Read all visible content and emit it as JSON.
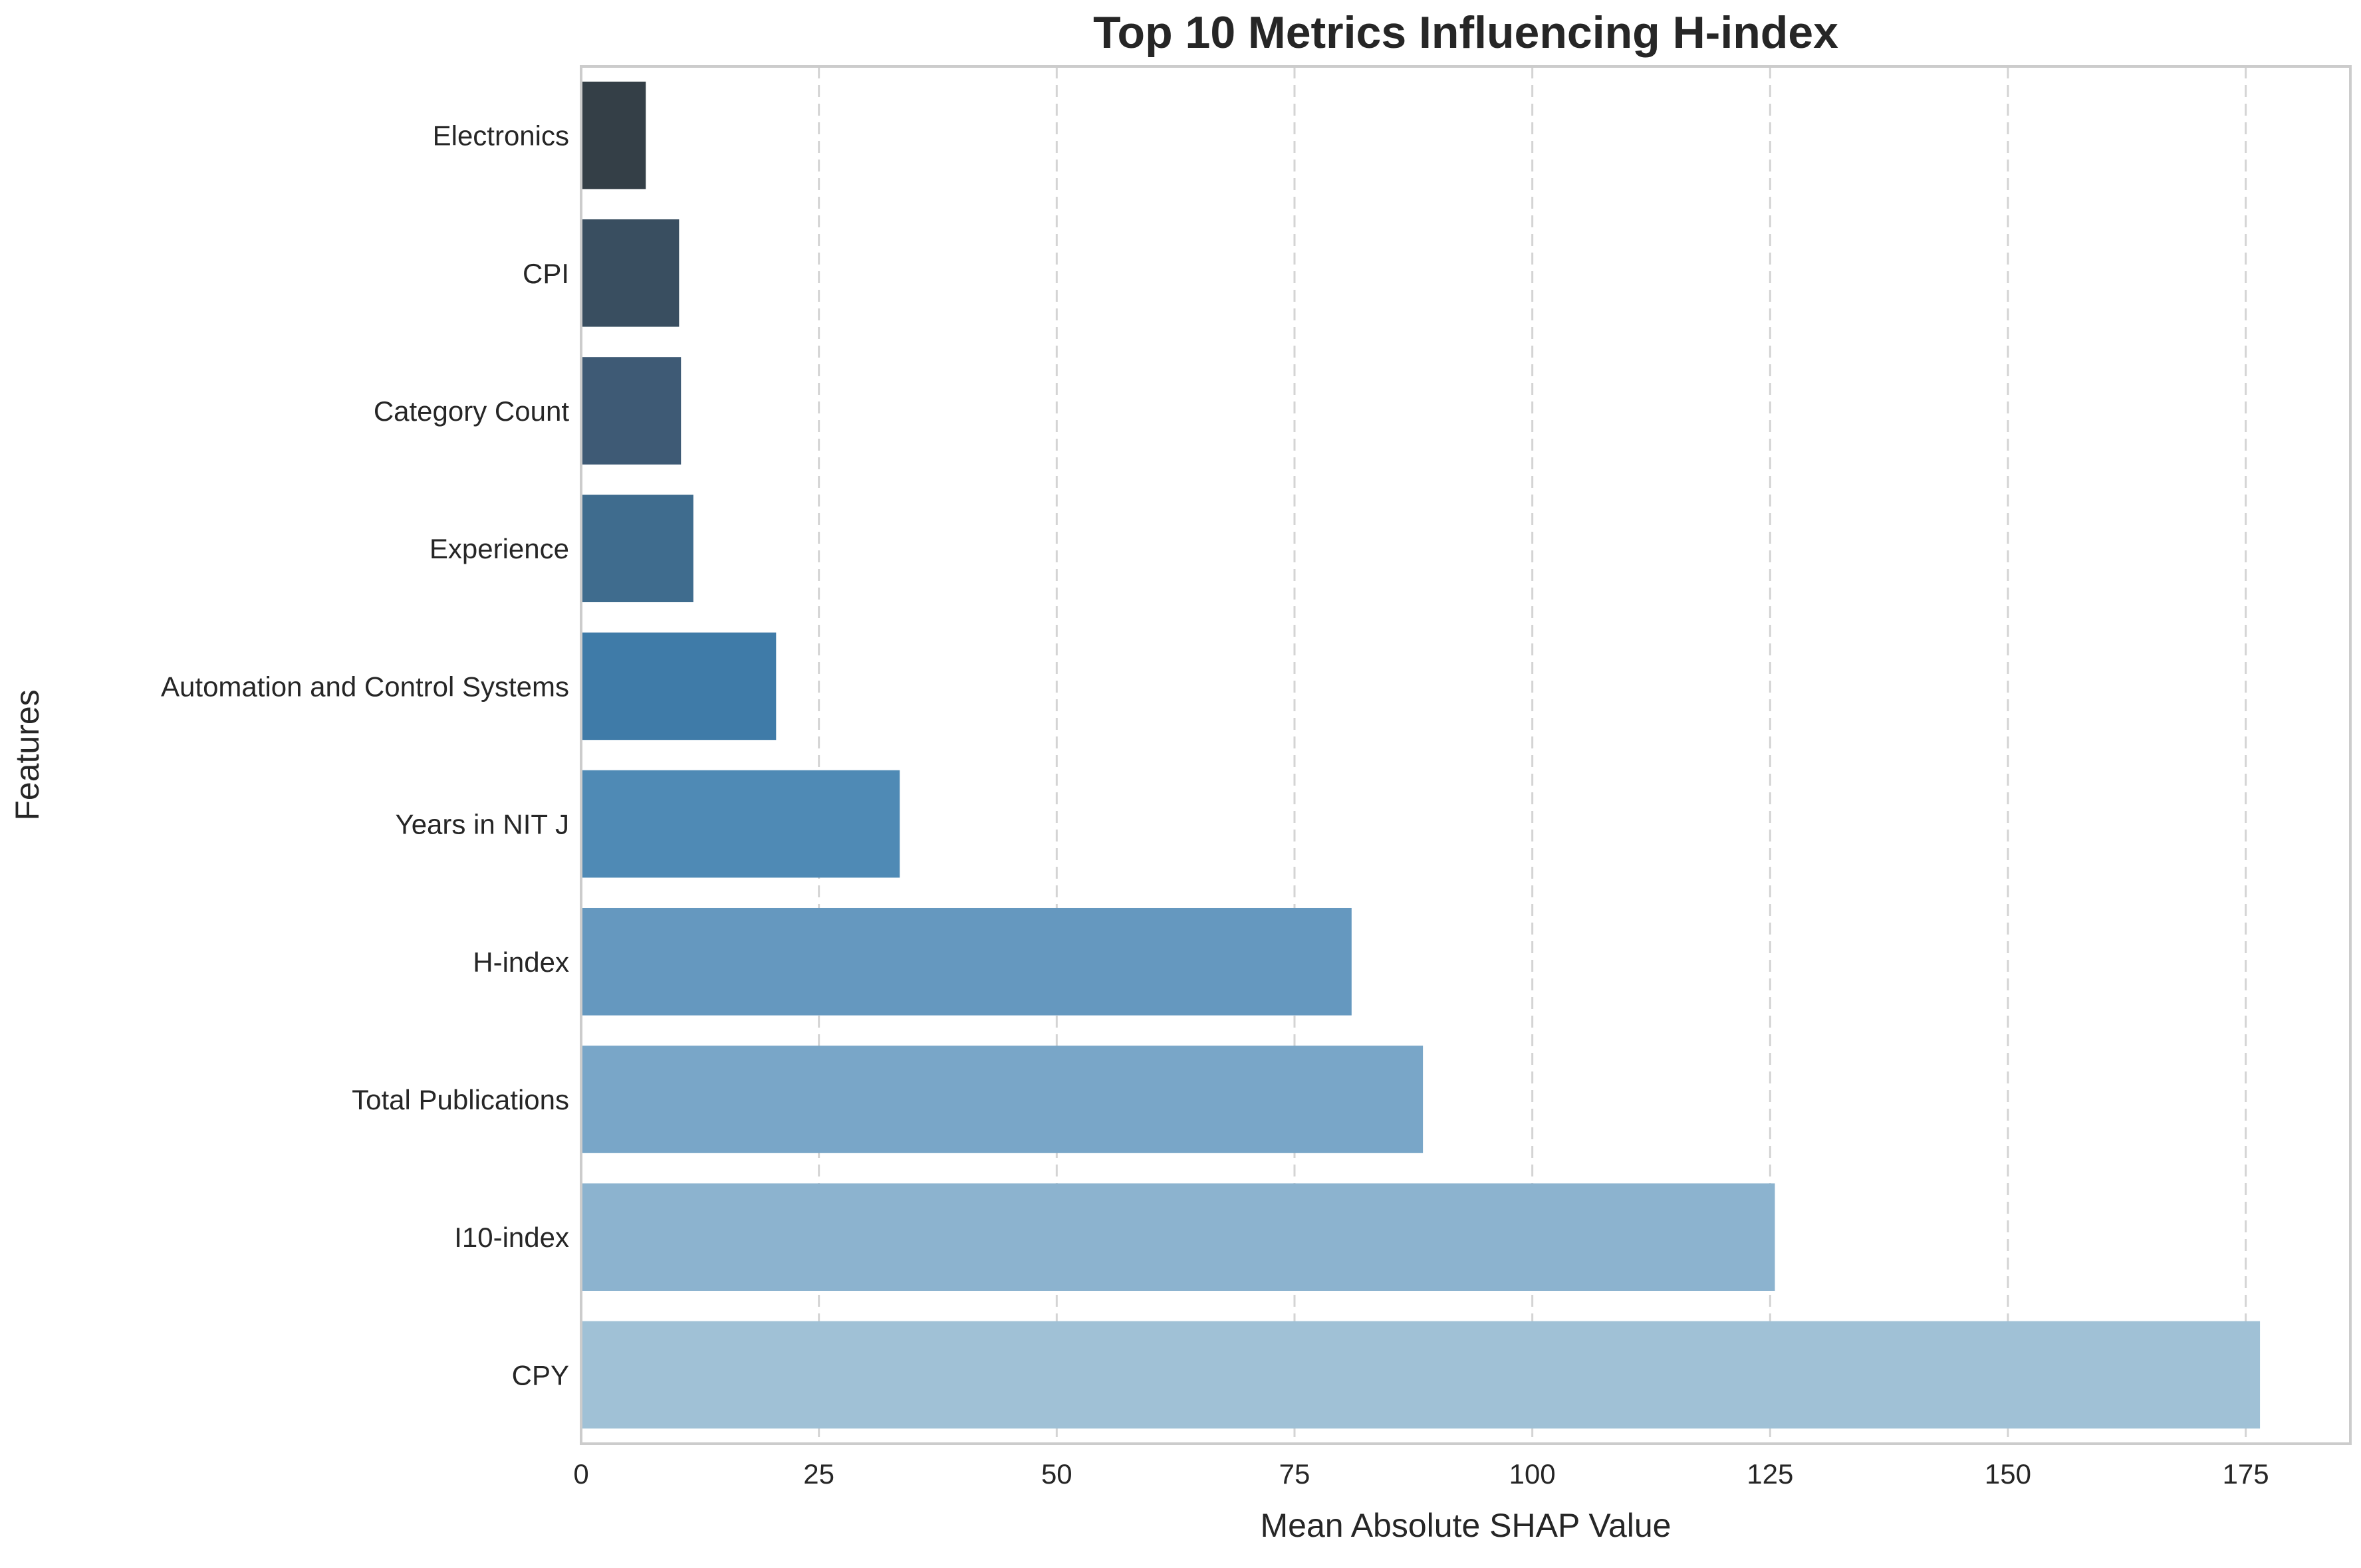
{
  "chart_data": {
    "type": "bar",
    "orientation": "horizontal",
    "title": "Top 10 Metrics Influencing H-index",
    "xlabel": "Mean Absolute SHAP Value",
    "ylabel": "Features",
    "categories": [
      "Electronics",
      "CPI ",
      "Category Count",
      "Experience",
      "Automation and Control Systems",
      "Years in NIT J",
      "H-index",
      "Total Publications",
      "I10-index",
      "CPY"
    ],
    "values": [
      6.8,
      10.3,
      10.5,
      11.8,
      20.5,
      33.5,
      81.0,
      88.5,
      125.5,
      176.5
    ],
    "colors": [
      "#343f47",
      "#394e60",
      "#3e5a75",
      "#3f6c8e",
      "#3f7ba8",
      "#4f8ab5",
      "#6598bf",
      "#79a6c8",
      "#8cb3cf",
      "#a0c1d6"
    ],
    "xlim": [
      0,
      186
    ],
    "xticks": [
      0,
      25,
      50,
      75,
      100,
      125,
      150,
      175
    ],
    "grid": "x, dashed",
    "legend": "none"
  }
}
